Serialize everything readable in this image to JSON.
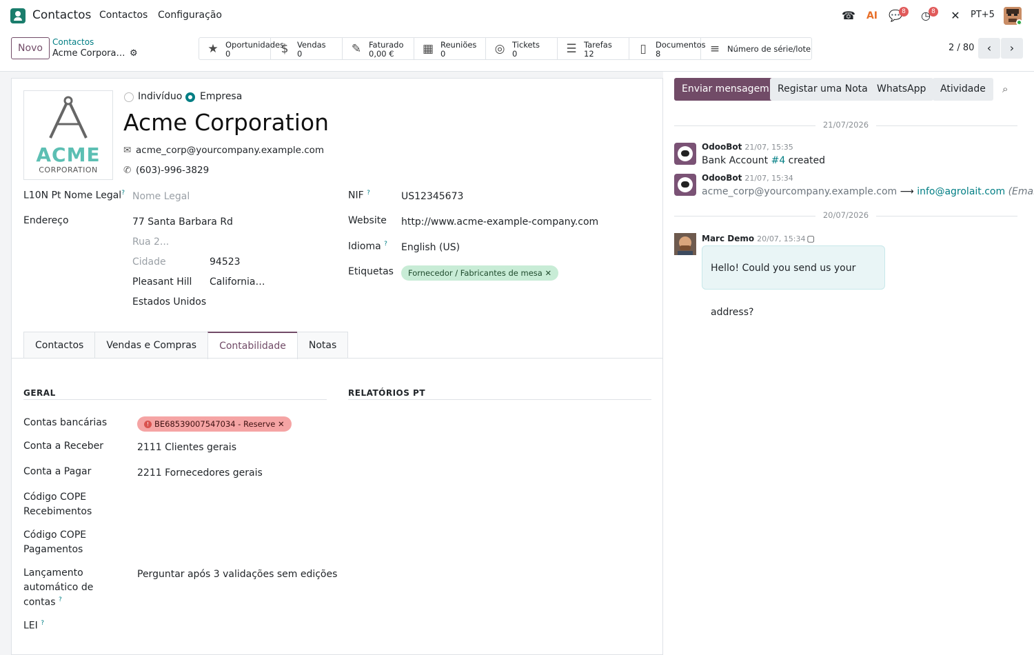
{
  "topbar": {
    "app_name": "Contactos",
    "menu": [
      "Contactos",
      "Configuração"
    ],
    "ai_label": "AI",
    "discuss_badge": "8",
    "activity_badge": "8",
    "company_switch": "PT+5"
  },
  "control": {
    "new_button": "Novo",
    "breadcrumb_parent": "Contactos",
    "breadcrumb_current": "Acme Corpora…",
    "pager": "2 / 80",
    "smart_buttons": [
      {
        "icon": "star-icon",
        "label": "Oportunidades",
        "value": "0"
      },
      {
        "icon": "dollar-icon",
        "label": "Vendas",
        "value": "0"
      },
      {
        "icon": "invoice-edit-icon",
        "label": "Faturado",
        "value": "0,00 €"
      },
      {
        "icon": "calendar-icon",
        "label": "Reuniões",
        "value": "0"
      },
      {
        "icon": "lifebuoy-icon",
        "label": "Tickets",
        "value": "0"
      },
      {
        "icon": "tasks-icon",
        "label": "Tarefas",
        "value": "12"
      },
      {
        "icon": "document-icon",
        "label": "Documentos",
        "value": "8"
      },
      {
        "icon": "list-icon",
        "label": "Número de série/lote",
        "value": ""
      }
    ]
  },
  "form": {
    "logo_text": "ACME",
    "logo_subtext": "CORPORATION",
    "radio_individual": "Indivíduo",
    "radio_company": "Empresa",
    "company_type": "Empresa",
    "name": "Acme Corporation",
    "email": "acme_corp@yourcompany.example.com",
    "phone": "(603)-996-3829",
    "legal_name_label": "L10N Pt Nome Legal",
    "legal_name_placeholder": "Nome Legal",
    "address_label": "Endereço",
    "street": "77 Santa Barbara Rd",
    "street2_placeholder": "Rua 2...",
    "city_placeholder": "Cidade",
    "zip": "94523",
    "city": "Pleasant Hill",
    "state": "California…",
    "country": "Estados Unidos",
    "vat_label": "NIF",
    "vat": "US12345673",
    "website_label": "Website",
    "website": "http://www.acme-example-company.com",
    "lang_label": "Idioma",
    "lang": "English (US)",
    "tags_label": "Etiquetas",
    "tag": "Fornecedor / Fabricantes de mesa",
    "help_mark": "?",
    "remove_mark": "✕"
  },
  "tabs": [
    "Contactos",
    "Vendas e Compras",
    "Contabilidade",
    "Notas"
  ],
  "active_tab": "Contabilidade",
  "accounting": {
    "general_title": "GERAL",
    "reports_title": "RELATÓRIOS PT",
    "bank_label": "Contas bancárias",
    "bank_tag": "BE68539007547034 - Reserve",
    "receivable_label": "Conta a Receber",
    "receivable": "2111 Clientes gerais",
    "payable_label": "Conta a Pagar",
    "payable": "2211 Fornecedores gerais",
    "cope_rec_label_1": "Código COPE",
    "cope_rec_label_2": "Recebimentos",
    "cope_pay_label_1": "Código COPE",
    "cope_pay_label_2": "Pagamentos",
    "auto_post_label_1": "Lançamento",
    "auto_post_label_2": "automático de",
    "auto_post_label_3": "contas",
    "auto_post": "Perguntar após 3 validações sem edições",
    "lei_label": "LEI"
  },
  "chatter": {
    "send_message": "Enviar mensagem",
    "log_note": "Registar uma Nota",
    "whatsapp": "WhatsApp",
    "activity": "Atividade",
    "date_1": "21/07/2026",
    "date_2": "20/07/2026",
    "messages": [
      {
        "author": "OdooBot",
        "time": "21/07, 15:35",
        "body_pre": "Bank Account ",
        "body_link": "#4",
        "body_post": " created"
      },
      {
        "author": "OdooBot",
        "time": "21/07, 15:34",
        "old_value": "acme_corp@yourcompany.example.com",
        "arrow": "⟶",
        "new_value": "info@agrolait.com",
        "field": "(Email)"
      },
      {
        "author": "Marc Demo",
        "time": "20/07, 15:34",
        "body": "Hello! Could you send us your address?"
      }
    ]
  },
  "colors": {
    "brand": "#714b67",
    "link": "#017e84",
    "tag_green": "#c8ecd6",
    "tag_red": "#f5a4a4"
  }
}
